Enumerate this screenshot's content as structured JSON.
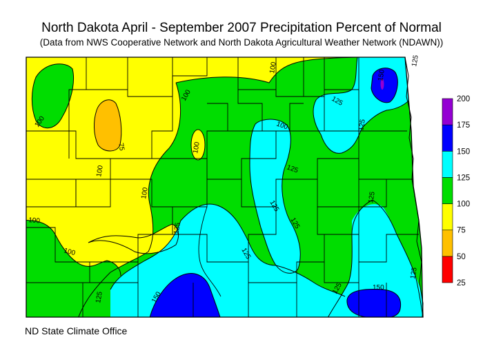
{
  "title": "North Dakota April - September 2007 Precipitation Percent of Normal",
  "subtitle": "(Data from NWS Cooperative Network and North Dakota Agricultural Weather Network (NDAWN))",
  "credit": "ND State Climate Office",
  "colors": {
    "very_low": "#ff0000",
    "low": "#ffc000",
    "below_normal": "#ffff00",
    "normal": "#00dd00",
    "above_normal": "#00ffff",
    "high": "#0000ff",
    "very_high": "#9400d3",
    "county_lines": "#000000",
    "background": "#ffffff"
  },
  "legend": {
    "classes": [
      {
        "min": 25,
        "max": 50,
        "color": "#ff0000"
      },
      {
        "min": 50,
        "max": 75,
        "color": "#ffc000"
      },
      {
        "min": 75,
        "max": 100,
        "color": "#ffff00"
      },
      {
        "min": 100,
        "max": 125,
        "color": "#00dd00"
      },
      {
        "min": 125,
        "max": 150,
        "color": "#00ffff"
      },
      {
        "min": 150,
        "max": 175,
        "color": "#0000ff"
      },
      {
        "min": 175,
        "max": 200,
        "color": "#9400d3"
      }
    ],
    "labels": [
      "25",
      "50",
      "75",
      "100",
      "125",
      "150",
      "175",
      "200"
    ]
  },
  "contour_labels": [
    "100",
    "100",
    "75",
    "100",
    "100",
    "100",
    "100",
    "100",
    "100",
    "100",
    "125",
    "125",
    "125",
    "125",
    "125",
    "125",
    "125",
    "125",
    "125",
    "125",
    "125",
    "125",
    "150",
    "150",
    "150"
  ]
}
